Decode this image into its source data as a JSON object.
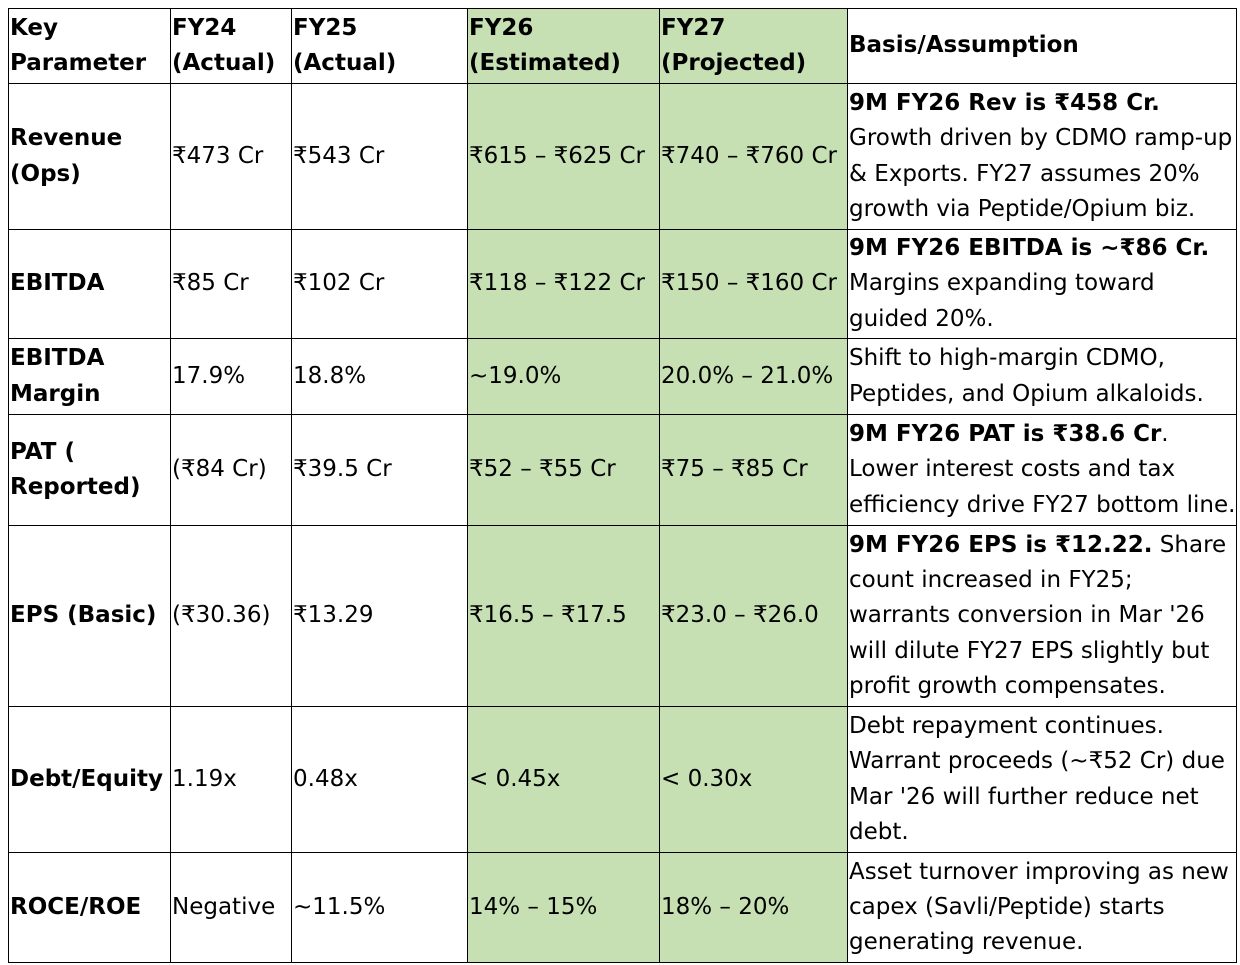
{
  "table": {
    "headers": [
      "Key Parameter",
      "FY24 (Actual)",
      "FY25 (Actual)",
      "FY26 (Estimated)",
      "FY27 (Projected)",
      "Basis/Assumption"
    ],
    "rows": [
      {
        "param": "Revenue (Ops)",
        "fy24": "₹473 Cr",
        "fy25": "₹543 Cr",
        "fy26": "₹615 – ₹625 Cr",
        "fy27": "₹740 – ₹760 Cr",
        "basis_bold": "9M FY26 Rev is ₹458 Cr.",
        "basis_text": " Growth driven by CDMO ramp-up & Exports. FY27 assumes 20% growth via Peptide/Opium biz."
      },
      {
        "param": "EBITDA",
        "fy24": "₹85 Cr",
        "fy25": "₹102 Cr",
        "fy26": "₹118 – ₹122 Cr",
        "fy27": "₹150 – ₹160 Cr",
        "basis_bold": "9M FY26 EBITDA is ~₹86 Cr.",
        "basis_text": " Margins expanding toward guided 20%."
      },
      {
        "param": "EBITDA Margin",
        "fy24": "17.9%",
        "fy25": "18.8%",
        "fy26": "~19.0%",
        "fy27": "20.0% – 21.0%",
        "basis_bold": "",
        "basis_text": "Shift to high-margin CDMO, Peptides, and Opium alkaloids."
      },
      {
        "param": "PAT ( Reported)",
        "fy24": "(₹84 Cr)",
        "fy25": "₹39.5 Cr",
        "fy26": "₹52 – ₹55 Cr",
        "fy27": "₹75 – ₹85 Cr",
        "basis_bold": "9M FY26 PAT is ₹38.6 Cr",
        "basis_text": ". Lower interest costs and tax efficiency drive FY27 bottom line."
      },
      {
        "param": "EPS (Basic)",
        "fy24": "(₹30.36)",
        "fy25": "₹13.29",
        "fy26": "₹16.5 – ₹17.5",
        "fy27": "₹23.0 – ₹26.0",
        "basis_bold": "9M FY26 EPS is ₹12.22.",
        "basis_text": " Share count increased in FY25; warrants conversion in Mar '26 will dilute FY27 EPS slightly but profit growth compensates."
      },
      {
        "param": "Debt/Equity",
        "fy24": "1.19x",
        "fy25": "0.48x",
        "fy26": "< 0.45x",
        "fy27": "< 0.30x",
        "basis_bold": "",
        "basis_text": "Debt repayment continues. Warrant proceeds (~₹52 Cr) due Mar '26 will further reduce net debt."
      },
      {
        "param": "ROCE/ROE",
        "fy24": "Negative",
        "fy25": "~11.5%",
        "fy26": "14% – 15%",
        "fy27": "18% – 20%",
        "basis_bold": "",
        "basis_text": "Asset turnover improving as new capex (Savli/Peptide) starts generating revenue."
      }
    ]
  },
  "colors": {
    "highlight": "#c6e0b4",
    "border": "#000000"
  }
}
